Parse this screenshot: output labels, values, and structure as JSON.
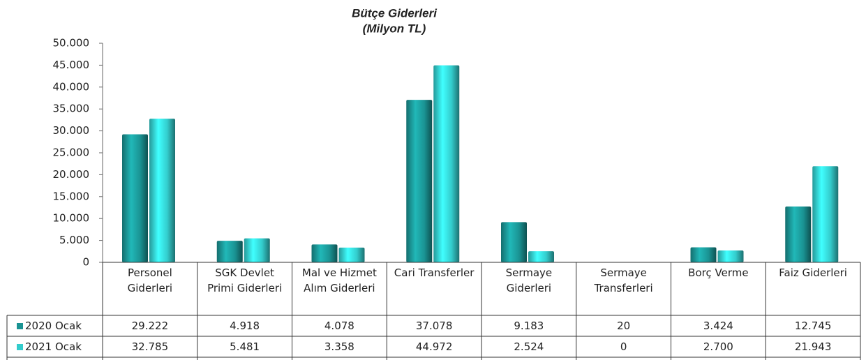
{
  "chart_data": {
    "type": "bar",
    "title": "Bütçe Giderleri",
    "subtitle": "(Milyon TL)",
    "categories": [
      "Personel Giderleri",
      "SGK Devlet Primi Giderleri",
      "Mal ve Hizmet Alım Giderleri",
      "Cari Transferler",
      "Sermaye Giderleri",
      "Sermaye Transferleri",
      "Borç Verme",
      "Faiz Giderleri"
    ],
    "series": [
      {
        "name": "2020 Ocak",
        "color": "#1a9393",
        "values": [
          29222,
          4918,
          4078,
          37078,
          9183,
          20,
          3424,
          12745
        ],
        "value_labels": [
          "29.222",
          "4.918",
          "4.078",
          "37.078",
          "9.183",
          "20",
          "3.424",
          "12.745"
        ]
      },
      {
        "name": "2021 Ocak",
        "color": "#33cccc",
        "values": [
          32785,
          5481,
          3358,
          44972,
          2524,
          0,
          2700,
          21943
        ],
        "value_labels": [
          "32.785",
          "5.481",
          "3.358",
          "44.972",
          "2.524",
          "0",
          "2.700",
          "21.943"
        ]
      }
    ],
    "ylim": [
      0,
      50000
    ],
    "yticks": [
      0,
      {
        "value": 5000,
        "label": "5.000"
      },
      {
        "value": 10000,
        "label": "10.000"
      },
      {
        "value": 15000,
        "label": "15.000"
      },
      {
        "value": 20000,
        "label": "20.000"
      },
      {
        "value": 25000,
        "label": "25.000"
      },
      {
        "value": 30000,
        "label": "30.000"
      },
      {
        "value": 35000,
        "label": "35.000"
      },
      {
        "value": 40000,
        "label": "40.000"
      },
      {
        "value": 45000,
        "label": "45.000"
      },
      {
        "value": 50000,
        "label": "50.000"
      }
    ],
    "grid": false
  }
}
